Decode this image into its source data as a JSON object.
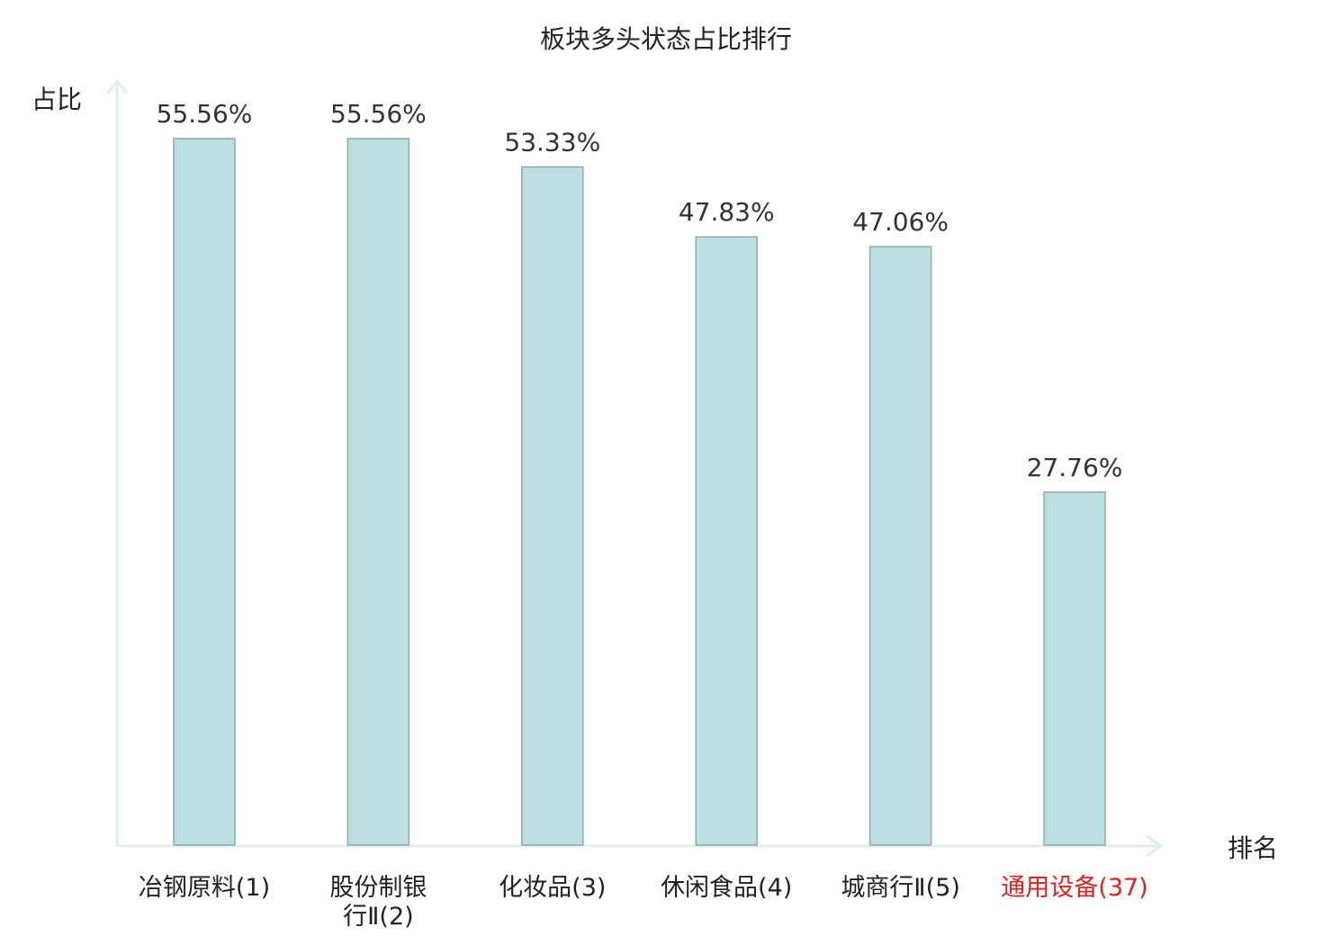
{
  "chart_data": {
    "type": "bar",
    "title": "板块多头状态占比排行",
    "ylabel": "占比",
    "xlabel": "排名",
    "categories": [
      [
        "冶钢原料(1)"
      ],
      [
        "股份制银",
        "行Ⅱ(2)"
      ],
      [
        "化妆品(3)"
      ],
      [
        "休闲食品(4)"
      ],
      [
        "城商行Ⅱ(5)"
      ],
      [
        "通用设备(37)"
      ]
    ],
    "values": [
      55.56,
      55.56,
      53.33,
      47.83,
      47.06,
      27.76
    ],
    "value_labels": [
      "55.56%",
      "55.56%",
      "53.33%",
      "47.83%",
      "47.06%",
      "27.76%"
    ],
    "highlight_index": 5,
    "ylim": [
      0,
      55.56
    ],
    "grid": false,
    "legend": "none"
  },
  "colors": {
    "bar_fill": "#bce0e2",
    "bar_stroke": "#8fa8a8",
    "axis": "#dff0ee",
    "text": "#222222",
    "value_text": "#333333",
    "highlight_text": "#e02020"
  }
}
